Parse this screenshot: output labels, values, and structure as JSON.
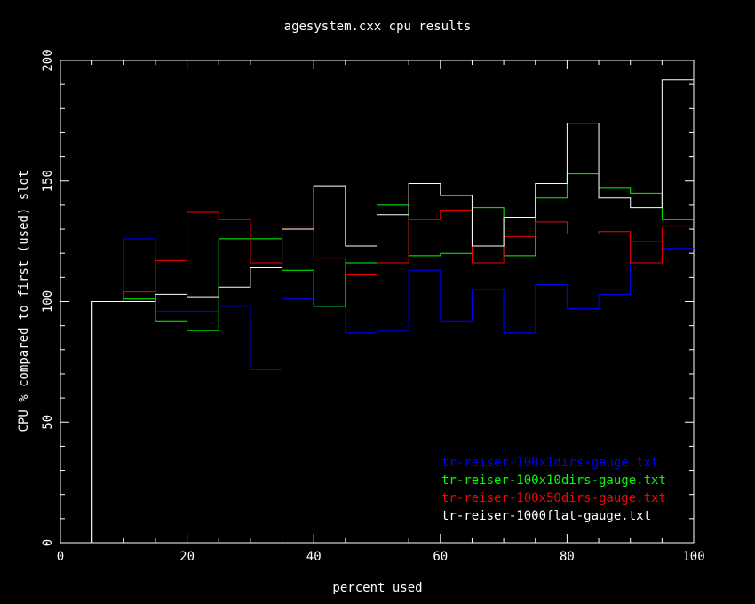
{
  "chart_data": {
    "type": "line",
    "title": "agesystem.cxx cpu results",
    "xlabel": "percent used",
    "ylabel": "CPU % compared to first (used) slot",
    "xlim": [
      0,
      100
    ],
    "ylim": [
      0,
      200
    ],
    "xticks": [
      0,
      20,
      40,
      60,
      80,
      100
    ],
    "yticks": [
      0,
      50,
      100,
      150,
      200
    ],
    "step": "histogram",
    "legend_position": "bottom-right",
    "bin_edges": [
      0,
      5,
      10,
      15,
      20,
      25,
      30,
      35,
      40,
      45,
      50,
      55,
      60,
      65,
      70,
      75,
      80,
      85,
      90,
      95,
      100
    ],
    "series": [
      {
        "name": "tr-reiser-100x1dirs-gauge.txt",
        "color": "#0000ff",
        "values": [
          0,
          100,
          126,
          96,
          96,
          98,
          72,
          101,
          98,
          87,
          88,
          113,
          92,
          105,
          87,
          107,
          97,
          103,
          125,
          122
        ]
      },
      {
        "name": "tr-reiser-100x10dirs-gauge.txt",
        "color": "#00ff00",
        "values": [
          0,
          100,
          101,
          92,
          88,
          126,
          126,
          113,
          98,
          116,
          140,
          119,
          120,
          139,
          119,
          143,
          153,
          147,
          145,
          134
        ]
      },
      {
        "name": "tr-reiser-100x50dirs-gauge.txt",
        "color": "#ff0000",
        "values": [
          0,
          100,
          104,
          117,
          137,
          134,
          116,
          131,
          118,
          111,
          116,
          134,
          138,
          116,
          127,
          133,
          128,
          129,
          116,
          131
        ]
      },
      {
        "name": "tr-reiser-1000flat-gauge.txt",
        "color": "#ffffff",
        "values": [
          0,
          100,
          100,
          103,
          102,
          106,
          114,
          130,
          148,
          123,
          136,
          149,
          144,
          123,
          135,
          149,
          174,
          143,
          139,
          192
        ]
      }
    ]
  }
}
